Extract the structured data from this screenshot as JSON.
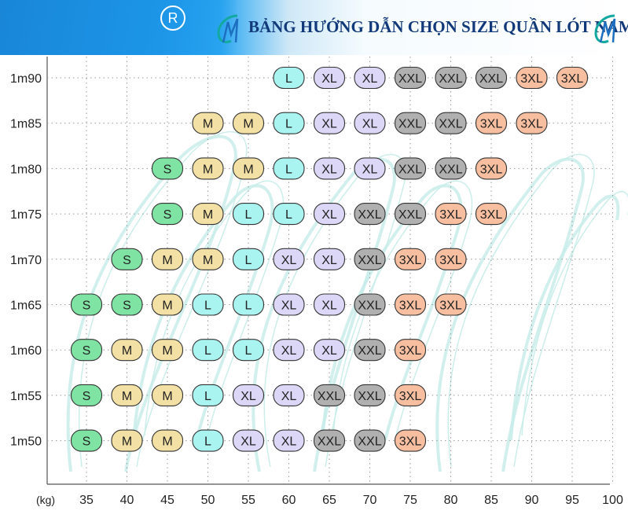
{
  "header": {
    "registered_symbol": "R",
    "title": "BẢNG HƯỚNG DẪN CHỌN SIZE QUẦN LÓT NAM",
    "logo_icon": "cm-monogram-icon"
  },
  "colors": {
    "S": "#7fe3a3",
    "M": "#f3e0a4",
    "L": "#a9f3f0",
    "XL": "#dcd6f7",
    "XXL": "#b0b0b0",
    "3XL": "#f7bfa0",
    "header_blue": "#1f9bee",
    "title_navy": "#123a7a",
    "grid": "#9a9a9a",
    "watermark": "#c6ece8"
  },
  "chart_data": {
    "type": "table",
    "x_axis_label": "(kg)",
    "x_ticks": [
      "35",
      "40",
      "45",
      "50",
      "55",
      "60",
      "65",
      "70",
      "75",
      "80",
      "85",
      "90",
      "95",
      "100"
    ],
    "y_ticks": [
      "1m90",
      "1m85",
      "1m80",
      "1m75",
      "1m70",
      "1m65",
      "1m60",
      "1m55",
      "1m50"
    ],
    "rows": [
      {
        "height": "1m90",
        "cells": [
          {
            "x": 60,
            "size": "L"
          },
          {
            "x": 65,
            "size": "XL"
          },
          {
            "x": 70,
            "size": "XL"
          },
          {
            "x": 75,
            "size": "XXL"
          },
          {
            "x": 80,
            "size": "XXL"
          },
          {
            "x": 85,
            "size": "XXL"
          },
          {
            "x": 90,
            "size": "3XL"
          },
          {
            "x": 95,
            "size": "3XL"
          }
        ]
      },
      {
        "height": "1m85",
        "cells": [
          {
            "x": 50,
            "size": "M"
          },
          {
            "x": 55,
            "size": "M"
          },
          {
            "x": 60,
            "size": "L"
          },
          {
            "x": 65,
            "size": "XL"
          },
          {
            "x": 70,
            "size": "XL"
          },
          {
            "x": 75,
            "size": "XXL"
          },
          {
            "x": 80,
            "size": "XXL"
          },
          {
            "x": 85,
            "size": "3XL"
          },
          {
            "x": 90,
            "size": "3XL"
          }
        ]
      },
      {
        "height": "1m80",
        "cells": [
          {
            "x": 45,
            "size": "S"
          },
          {
            "x": 50,
            "size": "M"
          },
          {
            "x": 55,
            "size": "M"
          },
          {
            "x": 60,
            "size": "L"
          },
          {
            "x": 65,
            "size": "XL"
          },
          {
            "x": 70,
            "size": "XL"
          },
          {
            "x": 75,
            "size": "XXL"
          },
          {
            "x": 80,
            "size": "XXL"
          },
          {
            "x": 85,
            "size": "3XL"
          }
        ]
      },
      {
        "height": "1m75",
        "cells": [
          {
            "x": 45,
            "size": "S"
          },
          {
            "x": 50,
            "size": "M"
          },
          {
            "x": 55,
            "size": "L"
          },
          {
            "x": 60,
            "size": "L"
          },
          {
            "x": 65,
            "size": "XL"
          },
          {
            "x": 70,
            "size": "XXL"
          },
          {
            "x": 75,
            "size": "XXL"
          },
          {
            "x": 80,
            "size": "3XL"
          },
          {
            "x": 85,
            "size": "3XL"
          }
        ]
      },
      {
        "height": "1m70",
        "cells": [
          {
            "x": 40,
            "size": "S"
          },
          {
            "x": 45,
            "size": "M"
          },
          {
            "x": 50,
            "size": "M"
          },
          {
            "x": 55,
            "size": "L"
          },
          {
            "x": 60,
            "size": "XL"
          },
          {
            "x": 65,
            "size": "XL"
          },
          {
            "x": 70,
            "size": "XXL"
          },
          {
            "x": 75,
            "size": "3XL"
          },
          {
            "x": 80,
            "size": "3XL"
          }
        ]
      },
      {
        "height": "1m65",
        "cells": [
          {
            "x": 35,
            "size": "S"
          },
          {
            "x": 40,
            "size": "S"
          },
          {
            "x": 45,
            "size": "M"
          },
          {
            "x": 50,
            "size": "L"
          },
          {
            "x": 55,
            "size": "L"
          },
          {
            "x": 60,
            "size": "XL"
          },
          {
            "x": 65,
            "size": "XL"
          },
          {
            "x": 70,
            "size": "XXL"
          },
          {
            "x": 75,
            "size": "3XL"
          },
          {
            "x": 80,
            "size": "3XL"
          }
        ]
      },
      {
        "height": "1m60",
        "cells": [
          {
            "x": 35,
            "size": "S"
          },
          {
            "x": 40,
            "size": "M"
          },
          {
            "x": 45,
            "size": "M"
          },
          {
            "x": 50,
            "size": "L"
          },
          {
            "x": 55,
            "size": "L"
          },
          {
            "x": 60,
            "size": "XL"
          },
          {
            "x": 65,
            "size": "XL"
          },
          {
            "x": 70,
            "size": "XXL"
          },
          {
            "x": 75,
            "size": "3XL"
          }
        ]
      },
      {
        "height": "1m55",
        "cells": [
          {
            "x": 35,
            "size": "S"
          },
          {
            "x": 40,
            "size": "M"
          },
          {
            "x": 45,
            "size": "M"
          },
          {
            "x": 50,
            "size": "L"
          },
          {
            "x": 55,
            "size": "XL"
          },
          {
            "x": 60,
            "size": "XL"
          },
          {
            "x": 65,
            "size": "XXL"
          },
          {
            "x": 70,
            "size": "XXL"
          },
          {
            "x": 75,
            "size": "3XL"
          }
        ]
      },
      {
        "height": "1m50",
        "cells": [
          {
            "x": 35,
            "size": "S"
          },
          {
            "x": 40,
            "size": "M"
          },
          {
            "x": 45,
            "size": "M"
          },
          {
            "x": 50,
            "size": "L"
          },
          {
            "x": 55,
            "size": "XL"
          },
          {
            "x": 60,
            "size": "XL"
          },
          {
            "x": 65,
            "size": "XXL"
          },
          {
            "x": 70,
            "size": "XXL"
          },
          {
            "x": 75,
            "size": "3XL"
          }
        ]
      }
    ]
  }
}
